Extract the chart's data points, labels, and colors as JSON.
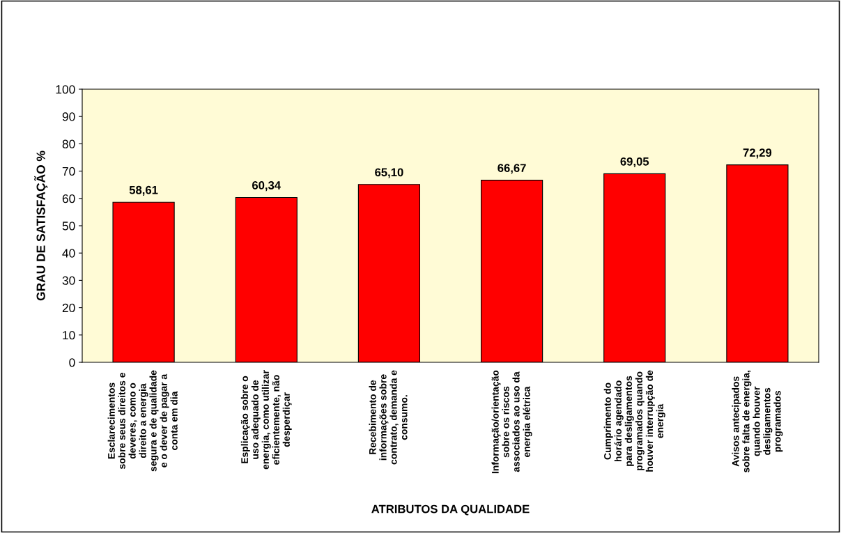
{
  "chart_data": {
    "type": "bar",
    "xlabel": "ATRIBUTOS DA QUALIDADE",
    "ylabel": "GRAU DE SATISFAÇÃO %",
    "categories": [
      "Esclarecimentos\nsobre seus direitos e\ndeveres, como o\ndireito a energia\nsegura e de qualidade\ne o dever de pagar a\nconta em dia",
      "Esplicação sobre o\nuso adequado de\nenergia, como utilizar\neficientemente, não\ndesperdiçar",
      "Recebimento de\ninformações sobre\ncontrato, demanda e\nconsumo.",
      "Informação/orientação\nsobre os riscos\nassociados ao uso da\nenergia elétrica",
      "Cumprimento do\nhorário agendado\npara desligamentos\nprogramados quando\nhouver interrupção de\nenergia",
      "Avisos antecipados\nsobre falta de energia,\nquando houver\ndesligamentos\nprogramados"
    ],
    "values": [
      58.61,
      60.34,
      65.1,
      66.67,
      69.05,
      72.29
    ],
    "value_labels": [
      "58,61",
      "60,34",
      "65,10",
      "66,67",
      "69,05",
      "72,29"
    ],
    "color": "#ff0000",
    "ylim": [
      0,
      100
    ],
    "yticks": [
      0,
      10,
      20,
      30,
      40,
      50,
      60,
      70,
      80,
      90,
      100
    ]
  }
}
